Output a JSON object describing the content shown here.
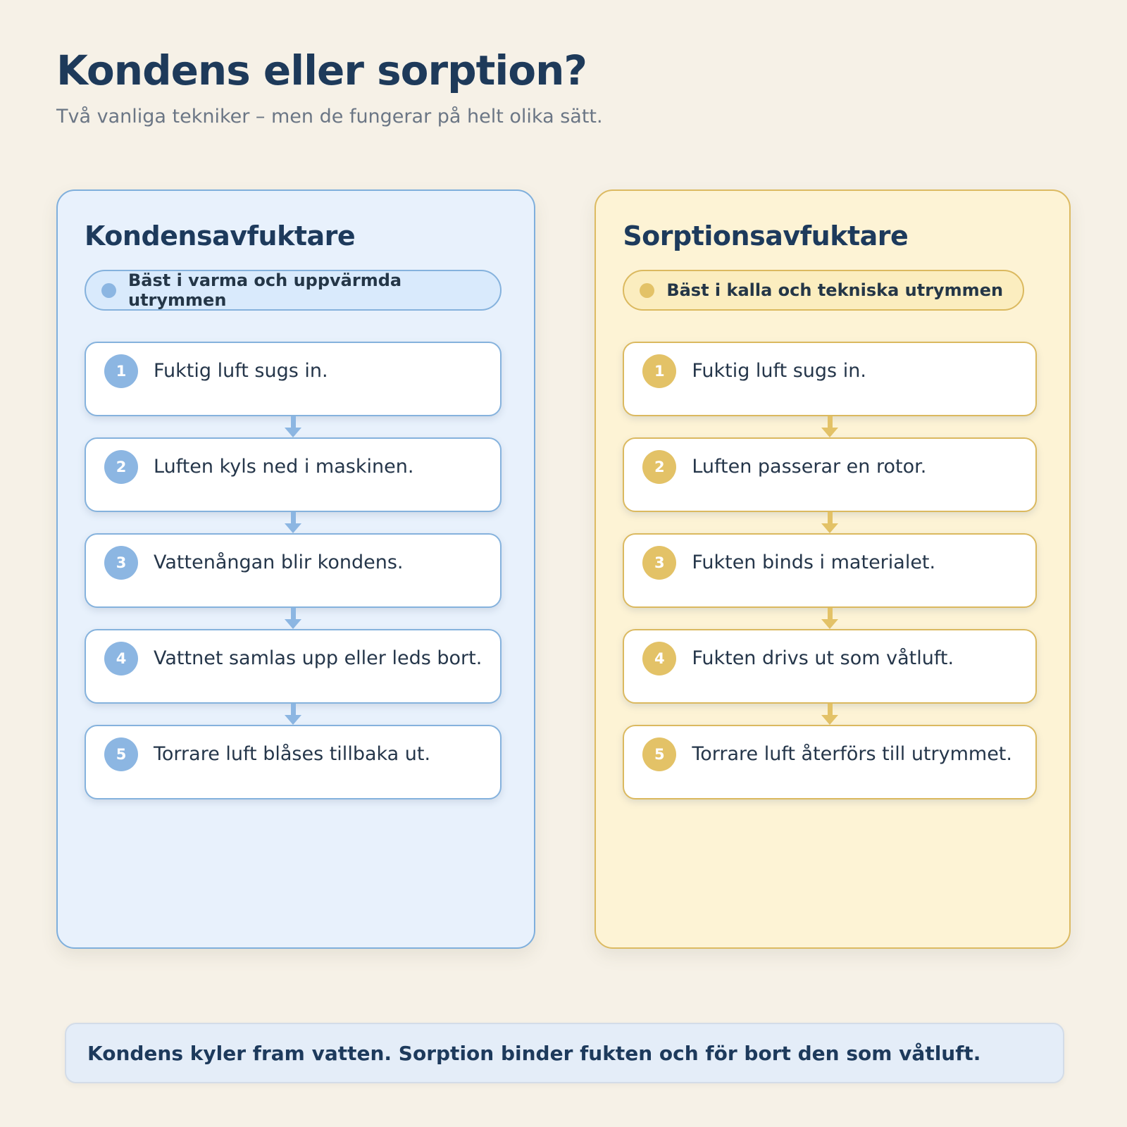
{
  "page": {
    "title": "Kondens eller sorption?",
    "subtitle": "Två vanliga tekniker – men de fungerar på helt olika sätt.",
    "footer": "Kondens kyler fram vatten. Sorption binder fukten och för bort den som våtluft."
  },
  "colors": {
    "page_background": "#f6f1e7",
    "heading_navy": "#1e3a5a",
    "subtitle_gray": "#6b7685",
    "blue_panel_background": "#e8f1fc",
    "blue_border": "#7fafdc",
    "blue_accent": "#8cb6e2",
    "blue_badge_background": "#d9eafc",
    "yellow_panel_background": "#fdf3d5",
    "yellow_border": "#dcba62",
    "yellow_accent": "#e3c267",
    "yellow_badge_background": "#fbedbf",
    "card_background": "#ffffff",
    "footer_background": "#e4edf8"
  },
  "panels": [
    {
      "title": "Kondensavfuktare",
      "badge": "Bäst i varma och uppvärmda utrymmen",
      "steps": [
        {
          "num": "1",
          "text": "Fuktig luft sugs in."
        },
        {
          "num": "2",
          "text": "Luften kyls ned i maskinen."
        },
        {
          "num": "3",
          "text": "Vattenångan blir kondens."
        },
        {
          "num": "4",
          "text": "Vattnet samlas upp eller leds bort."
        },
        {
          "num": "5",
          "text": "Torrare luft blåses tillbaka ut."
        }
      ]
    },
    {
      "title": "Sorptionsavfuktare",
      "badge": "Bäst i kalla och tekniska utrymmen",
      "steps": [
        {
          "num": "1",
          "text": "Fuktig luft sugs in."
        },
        {
          "num": "2",
          "text": "Luften passerar en rotor."
        },
        {
          "num": "3",
          "text": "Fukten binds i materialet."
        },
        {
          "num": "4",
          "text": "Fukten drivs ut som våtluft."
        },
        {
          "num": "5",
          "text": "Torrare luft återförs till utrymmet."
        }
      ]
    }
  ]
}
